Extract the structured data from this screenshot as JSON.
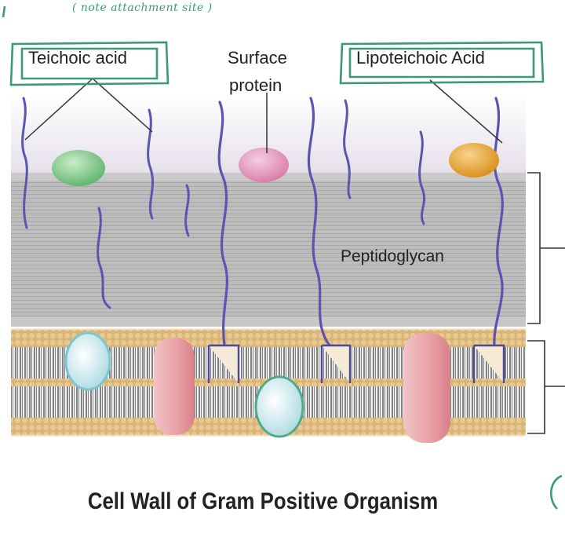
{
  "annotation": {
    "note": "( note attachment site )"
  },
  "labels": {
    "teichoic_acid": "Teichoic acid",
    "surface_protein_line1": "Surface",
    "surface_protein_line2": "protein",
    "lipoteichoic_acid": "Lipoteichoic Acid",
    "peptidoglycan": "Peptidoglycan"
  },
  "caption": "Cell Wall of Gram Positive Organism",
  "colors": {
    "highlight_box": "#3a9a78",
    "peptidoglycan": "#b9b9b9",
    "membrane": "#d9b47a",
    "teichoic_chain": "#5a55b0",
    "protein_green": "#6fbf7a",
    "protein_pink": "#e08bb0",
    "protein_orange": "#e2a12c",
    "transmembrane_pink": "#e5a0a6",
    "transmembrane_blue": "#a8d8e2"
  }
}
